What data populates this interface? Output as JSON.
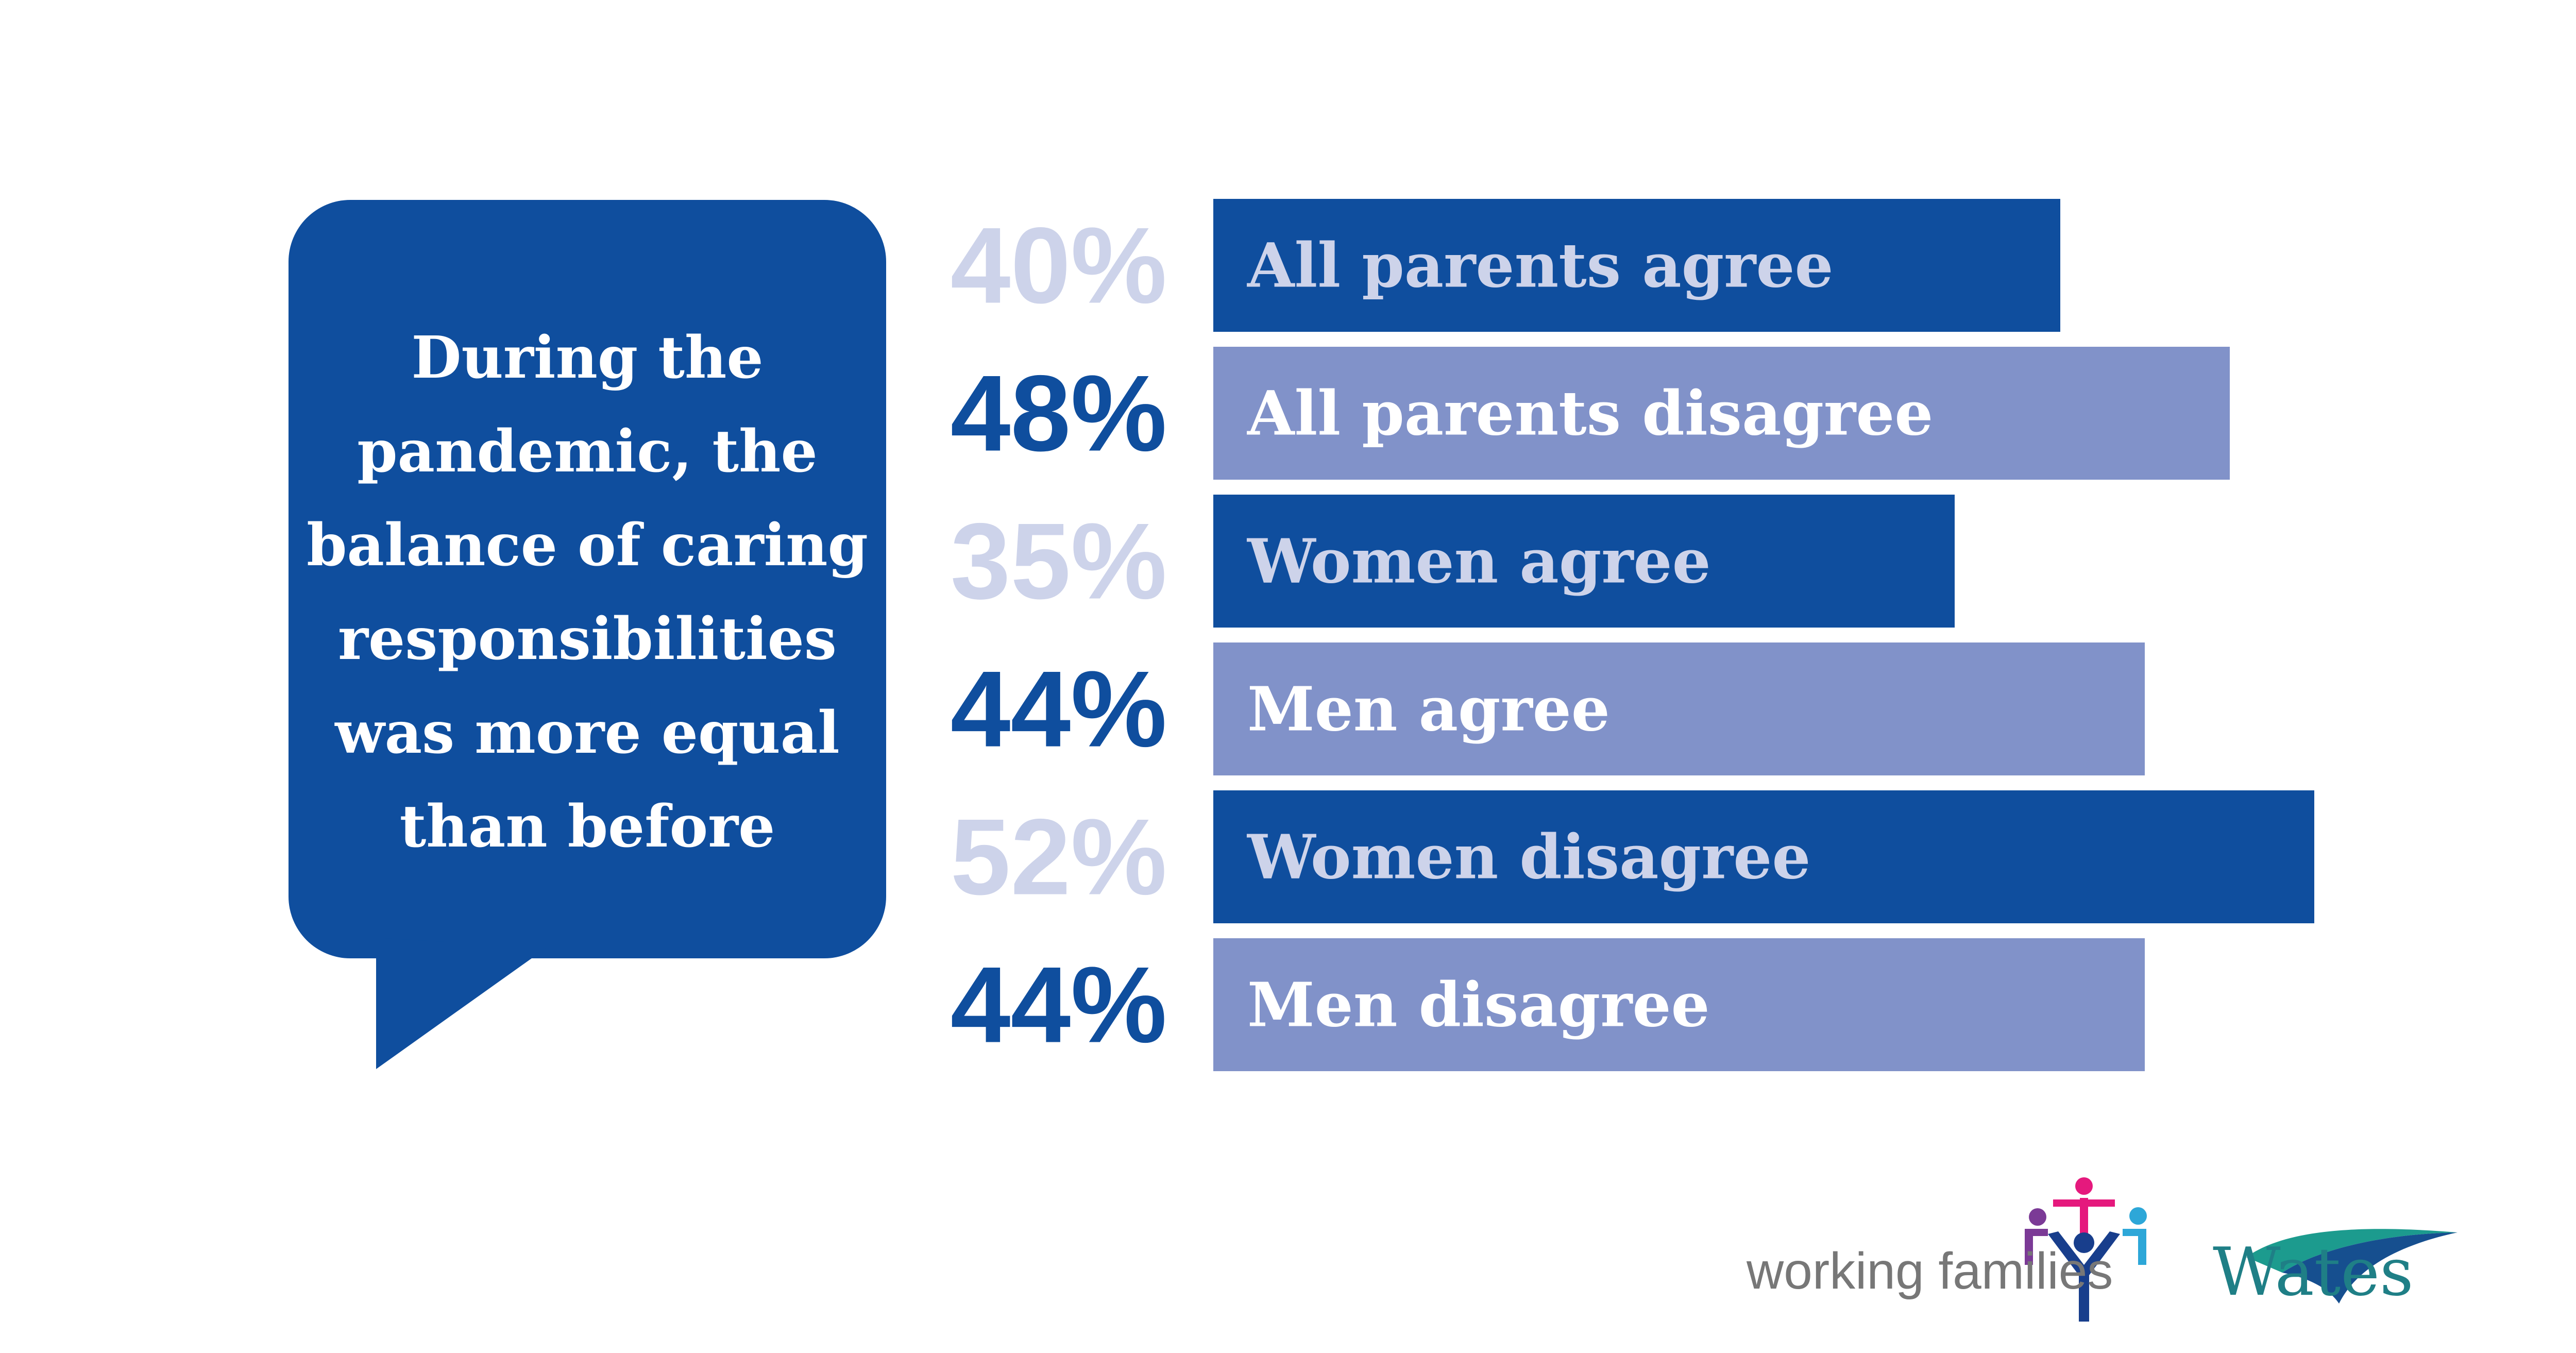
{
  "callout": {
    "text": "During the\npandemic, the\nbalance of caring\nresponsibilities\nwas more equal\nthan before"
  },
  "colors": {
    "dark_blue": "#0f4e9e",
    "light_blue": "#8192c9",
    "pale_percent": "#cdd3ea",
    "white": "#ffffff"
  },
  "chart_data": {
    "type": "bar",
    "orientation": "horizontal",
    "categories": [
      "All parents agree",
      "All parents disagree",
      "Women agree",
      "Men agree",
      "Women disagree",
      "Men disagree"
    ],
    "values": [
      40,
      48,
      35,
      44,
      52,
      44
    ],
    "value_labels": [
      "40%",
      "48%",
      "35%",
      "44%",
      "52%",
      "44%"
    ],
    "bar_styles": [
      "dark",
      "light",
      "dark",
      "light",
      "dark",
      "light"
    ],
    "unit": "%",
    "title": "",
    "xlabel": "",
    "ylabel": ""
  },
  "logos": {
    "working_families": "working families",
    "wates": "Wates"
  }
}
